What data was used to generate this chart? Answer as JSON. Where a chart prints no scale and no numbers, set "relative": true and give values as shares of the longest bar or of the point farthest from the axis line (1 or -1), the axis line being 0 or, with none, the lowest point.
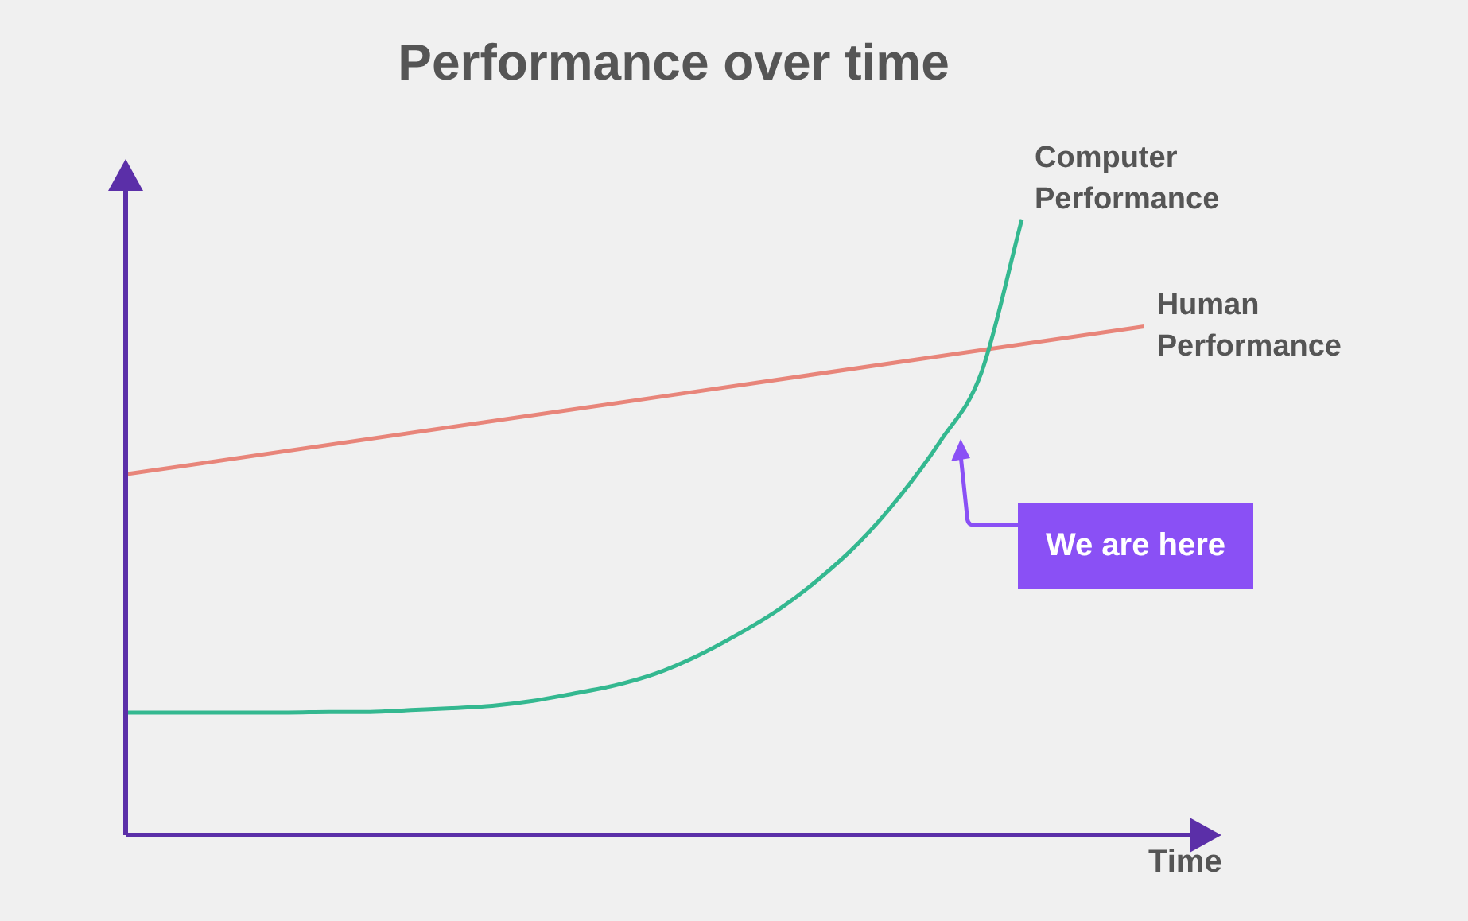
{
  "chart_data": {
    "type": "line",
    "title": "Performance over time",
    "xlabel": "Time",
    "relative": true,
    "legend": false,
    "marker": "none",
    "categories": [
      null,
      null,
      null,
      null,
      null,
      null,
      null,
      null,
      null,
      null,
      null,
      null,
      null,
      null,
      null,
      null,
      null,
      null,
      null,
      null,
      null,
      null,
      null,
      null,
      null,
      null
    ],
    "series": [
      {
        "name": "Computer Performance",
        "color": "#34b890",
        "values": [
          0.199,
          0.199,
          0.199,
          0.199,
          0.199,
          0.2,
          0.2,
          0.203,
          0.206,
          0.21,
          0.218,
          0.23,
          0.243,
          0.262,
          0.29,
          0.325,
          0.365,
          0.415,
          0.475,
          0.55,
          0.64,
          0.75,
          1.0,
          null,
          null,
          null
        ]
      },
      {
        "name": "Human Performance",
        "color": "#e8857a",
        "values": [
          0.586,
          null,
          null,
          null,
          null,
          null,
          null,
          null,
          null,
          null,
          null,
          null,
          null,
          null,
          null,
          null,
          null,
          null,
          null,
          null,
          null,
          null,
          null,
          null,
          null,
          0.826
        ]
      }
    ],
    "annotations": [
      "We are here"
    ]
  }
}
